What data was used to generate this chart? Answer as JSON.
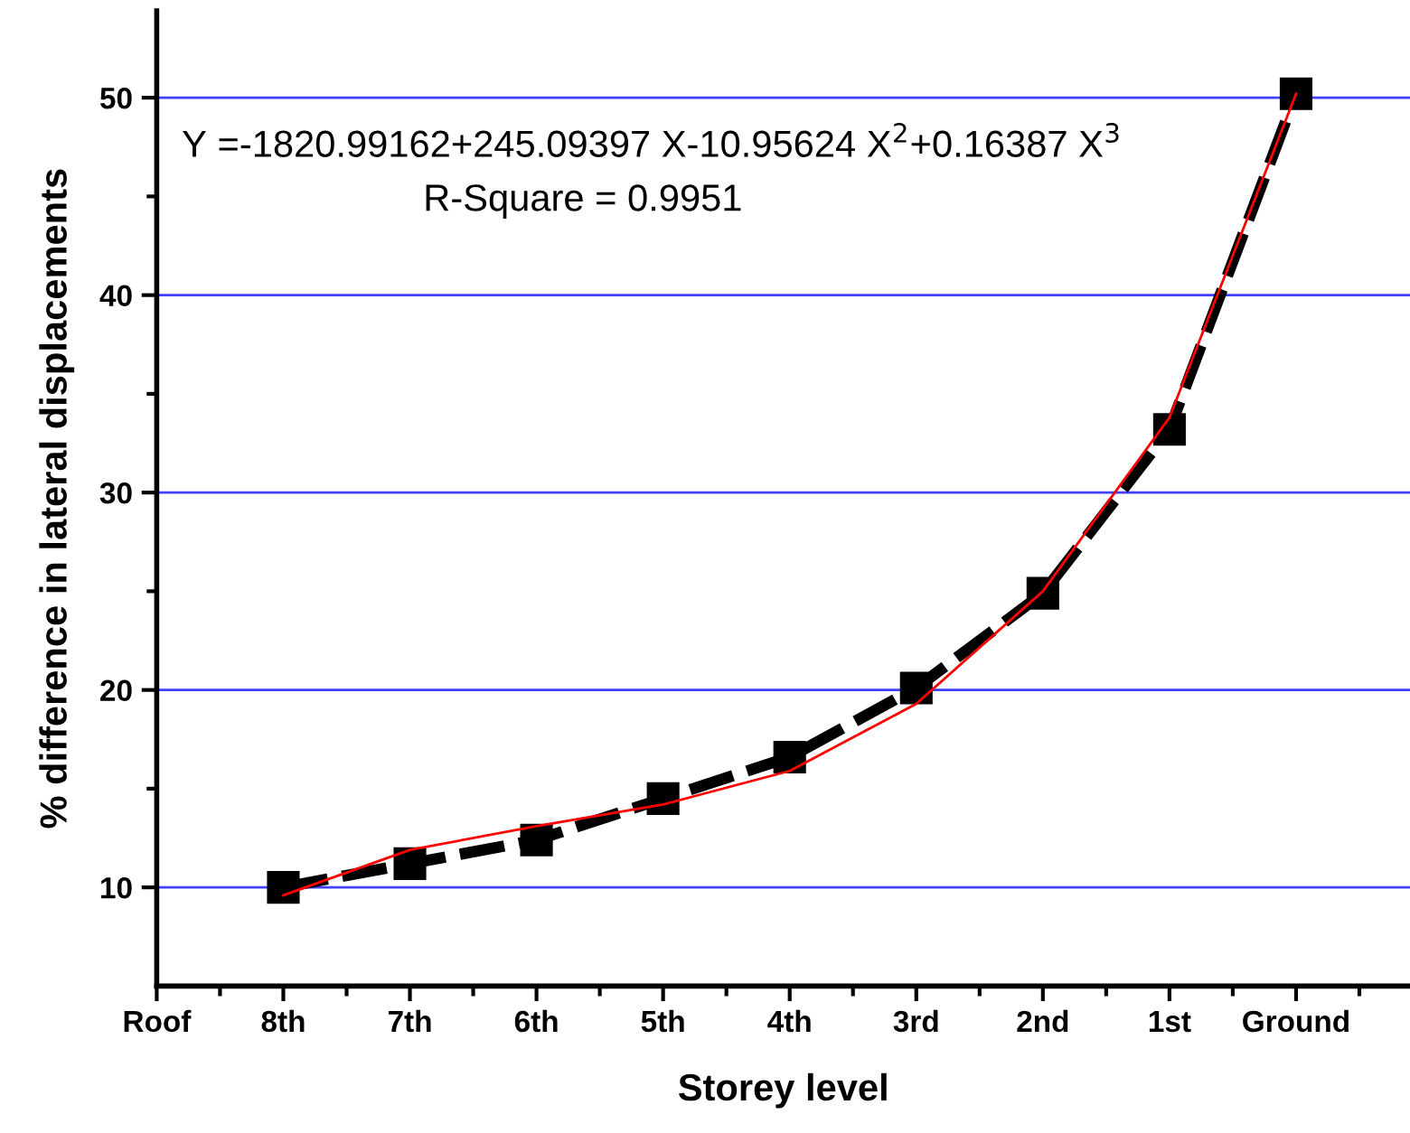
{
  "chart_data": {
    "type": "line",
    "xlabel": "Storey level",
    "ylabel": "% difference in lateral displacements",
    "categories": [
      "Roof",
      "8th",
      "7th",
      "6th",
      "5th",
      "4th",
      "3rd",
      "2nd",
      "1st",
      "Ground"
    ],
    "ylim": [
      5,
      54.4
    ],
    "yticks": [
      10,
      20,
      30,
      40,
      50,
      {
        "value": 15,
        "label": null
      },
      {
        "value": 25,
        "label": null
      },
      {
        "value": 35,
        "label": null
      },
      {
        "value": 45,
        "label": null
      }
    ],
    "grid": "y",
    "series": [
      {
        "color": "#ff0000",
        "line_style": "solid",
        "marker": "none",
        "values": [
          null,
          9.6,
          11.9,
          13.1,
          14.2,
          15.9,
          19.3,
          25.0,
          33.8,
          50.2
        ]
      },
      {
        "color": "#000000",
        "line_style": "dashed",
        "marker": "square",
        "values": [
          null,
          10.0,
          11.2,
          12.4,
          14.5,
          16.6,
          20.1,
          24.9,
          33.2,
          50.2
        ]
      }
    ],
    "annotations": [
      "Y =-1820.99162+245.09397 X-10.95624 X$^{2}$+0.16387 X$^{3}$",
      "R-Square = 0.9951"
    ]
  }
}
